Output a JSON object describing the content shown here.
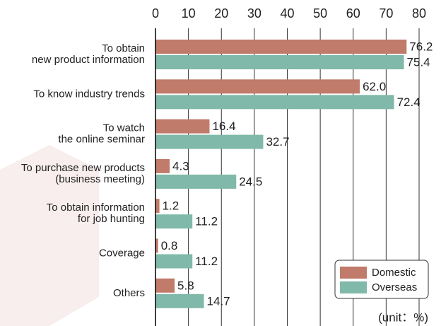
{
  "chart_data": {
    "type": "hbar",
    "categories": [
      [
        "To obtain",
        "new product information"
      ],
      [
        "To know industry trends"
      ],
      [
        "To watch",
        "the online seminar"
      ],
      [
        "To purchase new products",
        "(business meeting)"
      ],
      [
        "To obtain information",
        "for job hunting"
      ],
      [
        "Coverage"
      ],
      [
        "Others"
      ]
    ],
    "series": [
      {
        "name": "Domestic",
        "color": "#c07b6b",
        "values": [
          76.2,
          62,
          16.4,
          4.3,
          1.2,
          0.8,
          5.8
        ],
        "value_labels": [
          "76.2",
          "62.0",
          "16.4",
          "4.3",
          "1.2",
          "0.8",
          "5.8"
        ]
      },
      {
        "name": "Overseas",
        "color": "#80b9a9",
        "values": [
          75.4,
          72.4,
          32.7,
          24.5,
          11.2,
          11.2,
          14.7
        ],
        "value_labels": [
          "75.4",
          "72.4",
          "32.7",
          "24.5",
          "11.2",
          "11.2",
          "14.7"
        ]
      }
    ],
    "xlim": [
      0,
      80
    ],
    "xticks": [
      0,
      10,
      20,
      30,
      40,
      50,
      60,
      70,
      80
    ],
    "grid": true,
    "legend": "lower right",
    "unit_note": "(unit：%)"
  }
}
